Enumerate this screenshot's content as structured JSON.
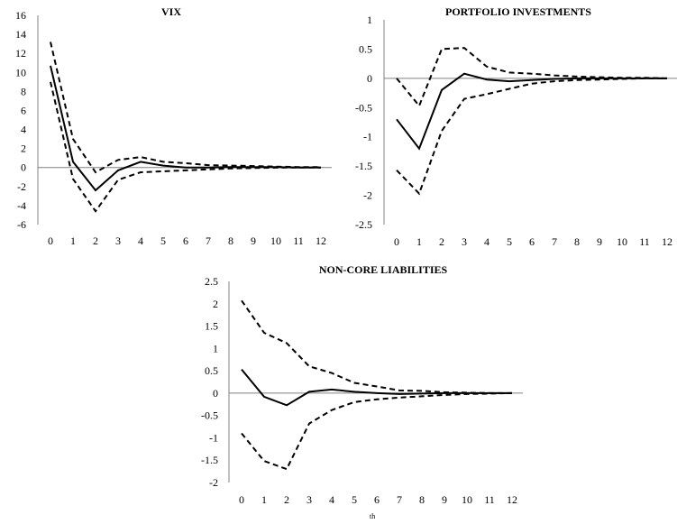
{
  "chart_data": [
    {
      "type": "line",
      "title": "VIX",
      "x": [
        0,
        1,
        2,
        3,
        4,
        5,
        6,
        7,
        8,
        9,
        10,
        11,
        12
      ],
      "ylim": [
        -6,
        16
      ],
      "yticks": [
        -6,
        -4,
        -2,
        0,
        2,
        4,
        6,
        8,
        10,
        12,
        14,
        16
      ],
      "ytick_labels": [
        "-6",
        "-4",
        "-2",
        "0",
        "2",
        "4",
        "6",
        "8",
        "10",
        "12",
        "14",
        "16"
      ],
      "xtick_labels": [
        "0",
        "1",
        "2",
        "3",
        "4",
        "5",
        "6",
        "7",
        "8",
        "9",
        "10",
        "11",
        "12"
      ],
      "grid": false,
      "series": [
        {
          "style": "solid",
          "values": [
            10.7,
            0.6,
            -2.4,
            -0.3,
            0.6,
            0.2,
            0.0,
            0.0,
            0.05,
            0.05,
            0.05,
            0.0,
            0.0
          ]
        },
        {
          "style": "dashed",
          "values": [
            13.2,
            3.0,
            -0.5,
            0.8,
            1.1,
            0.6,
            0.45,
            0.25,
            0.2,
            0.15,
            0.1,
            0.05,
            0.05
          ]
        },
        {
          "style": "dashed",
          "values": [
            9.0,
            -1.2,
            -4.6,
            -1.3,
            -0.5,
            -0.4,
            -0.3,
            -0.2,
            -0.1,
            -0.05,
            -0.02,
            0.0,
            0.0
          ]
        }
      ]
    },
    {
      "type": "line",
      "title": "PORTFOLIO  INVESTMENTS",
      "x": [
        0,
        1,
        2,
        3,
        4,
        5,
        6,
        7,
        8,
        9,
        10,
        11,
        12
      ],
      "ylim": [
        -2.5,
        1
      ],
      "yticks": [
        -2.5,
        -2,
        -1.5,
        -1,
        -0.5,
        0,
        0.5,
        1
      ],
      "ytick_labels": [
        "-2.5",
        "-2",
        "-1.5",
        "-1",
        "-0.5",
        "0",
        "0.5",
        "1"
      ],
      "xtick_labels": [
        "0",
        "1",
        "2",
        "3",
        "4",
        "5",
        "6",
        "7",
        "8",
        "9",
        "10",
        "11",
        "12"
      ],
      "grid": false,
      "series": [
        {
          "style": "solid",
          "values": [
            -0.7,
            -1.2,
            -0.2,
            0.08,
            -0.02,
            -0.05,
            -0.03,
            -0.01,
            0.0,
            0.0,
            0.0,
            0.0,
            0.0
          ]
        },
        {
          "style": "dashed",
          "values": [
            0.0,
            -0.47,
            0.5,
            0.52,
            0.2,
            0.1,
            0.08,
            0.05,
            0.03,
            0.02,
            0.01,
            0.01,
            0.0
          ]
        },
        {
          "style": "dashed",
          "values": [
            -1.57,
            -1.97,
            -0.9,
            -0.35,
            -0.27,
            -0.18,
            -0.09,
            -0.05,
            -0.03,
            -0.02,
            -0.01,
            0.0,
            0.0
          ]
        }
      ]
    },
    {
      "type": "line",
      "title": "NON-CORE LIABILITIES",
      "x": [
        0,
        1,
        2,
        3,
        4,
        5,
        6,
        7,
        8,
        9,
        10,
        11,
        12
      ],
      "ylim": [
        -2,
        2.5
      ],
      "yticks": [
        -2,
        -1.5,
        -1,
        -0.5,
        0,
        0.5,
        1,
        1.5,
        2,
        2.5
      ],
      "ytick_labels": [
        "-2",
        "-1.5",
        "-1",
        "-0.5",
        "0",
        "0.5",
        "1",
        "1.5",
        "2",
        "2.5"
      ],
      "xtick_labels": [
        "0",
        "1",
        "2",
        "3",
        "4",
        "5",
        "6",
        "7",
        "8",
        "9",
        "10",
        "11",
        "12"
      ],
      "grid": false,
      "series": [
        {
          "style": "solid",
          "values": [
            0.53,
            -0.08,
            -0.27,
            0.03,
            0.08,
            0.03,
            0.0,
            -0.02,
            -0.01,
            0.0,
            0.0,
            0.0,
            0.0
          ]
        },
        {
          "style": "dashed",
          "values": [
            2.07,
            1.35,
            1.12,
            0.6,
            0.45,
            0.23,
            0.15,
            0.06,
            0.05,
            0.02,
            0.01,
            0.0,
            0.0
          ]
        },
        {
          "style": "dashed",
          "values": [
            -0.9,
            -1.52,
            -1.7,
            -0.68,
            -0.38,
            -0.2,
            -0.14,
            -0.1,
            -0.07,
            -0.04,
            -0.02,
            -0.01,
            0.0
          ]
        }
      ]
    }
  ],
  "cutoff_text": "th"
}
